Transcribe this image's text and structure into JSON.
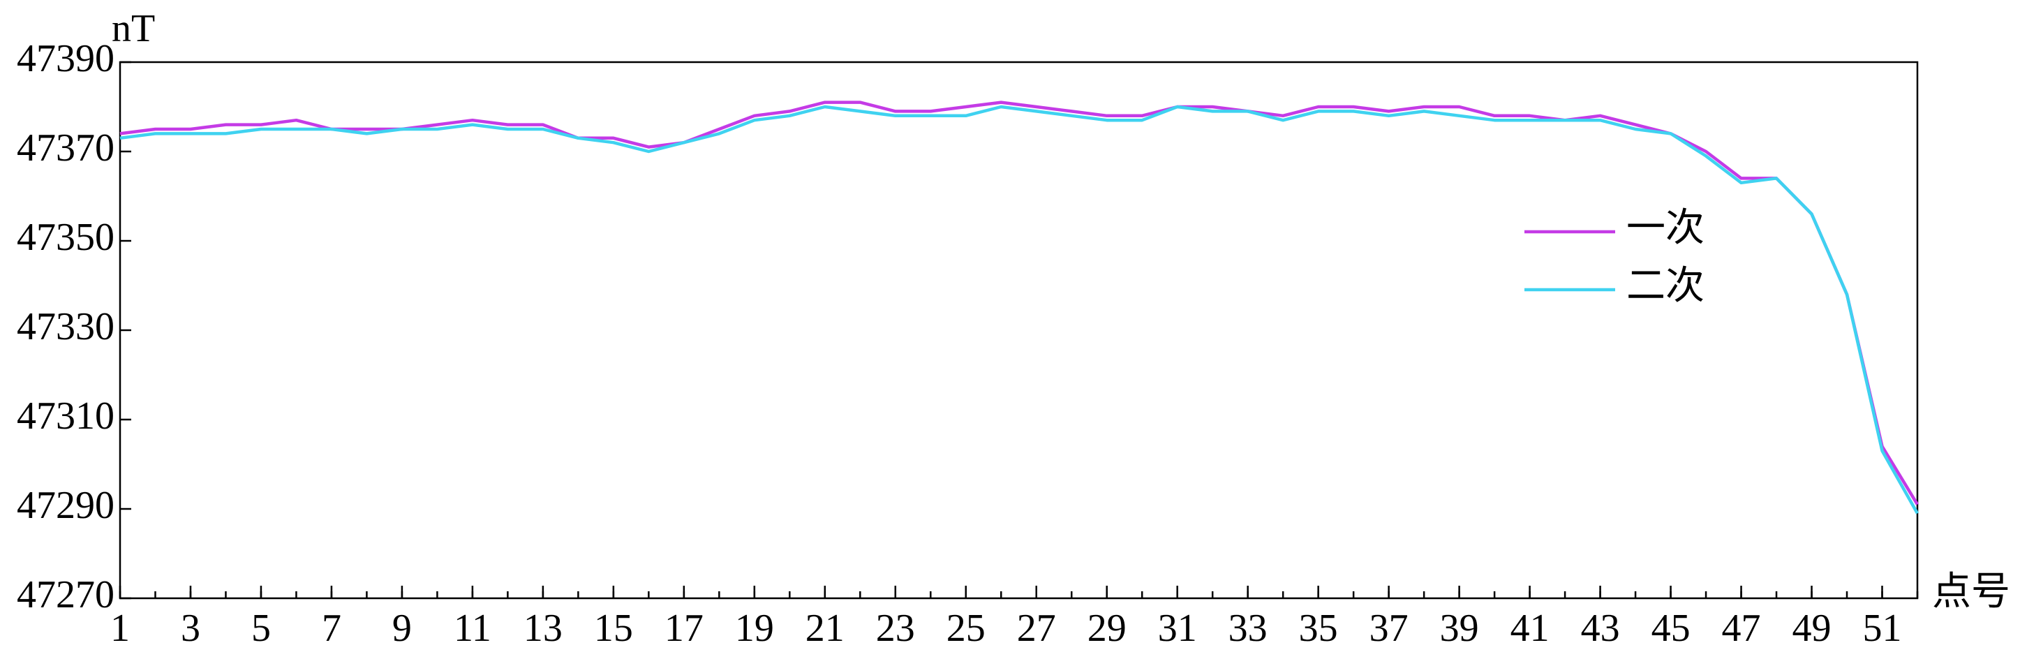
{
  "chart_data": {
    "type": "line",
    "y_label": "nT",
    "x_label": "点号",
    "x": [
      1,
      2,
      3,
      4,
      5,
      6,
      7,
      8,
      9,
      10,
      11,
      12,
      13,
      14,
      15,
      16,
      17,
      18,
      19,
      20,
      21,
      22,
      23,
      24,
      25,
      26,
      27,
      28,
      29,
      30,
      31,
      32,
      33,
      34,
      35,
      36,
      37,
      38,
      39,
      40,
      41,
      42,
      43,
      44,
      45,
      46,
      47,
      48,
      49,
      50,
      51,
      52
    ],
    "series": [
      {
        "name": "一次",
        "color": "#c43be6",
        "values": [
          47374,
          47375,
          47375,
          47376,
          47376,
          47377,
          47375,
          47375,
          47375,
          47376,
          47377,
          47376,
          47376,
          47373,
          47373,
          47371,
          47372,
          47375,
          47378,
          47379,
          47381,
          47381,
          47379,
          47379,
          47380,
          47381,
          47380,
          47379,
          47378,
          47378,
          47380,
          47380,
          47379,
          47378,
          47380,
          47380,
          47379,
          47380,
          47380,
          47378,
          47378,
          47377,
          47378,
          47376,
          47374,
          47370,
          47364,
          47364,
          47356,
          47338,
          47304,
          47291
        ]
      },
      {
        "name": "二次",
        "color": "#3fd2f0",
        "values": [
          47373,
          47374,
          47374,
          47374,
          47375,
          47375,
          47375,
          47374,
          47375,
          47375,
          47376,
          47375,
          47375,
          47373,
          47372,
          47370,
          47372,
          47374,
          47377,
          47378,
          47380,
          47379,
          47378,
          47378,
          47378,
          47380,
          47379,
          47378,
          47377,
          47377,
          47380,
          47379,
          47379,
          47377,
          47379,
          47379,
          47378,
          47379,
          47378,
          47377,
          47377,
          47377,
          47377,
          47375,
          47374,
          47369,
          47363,
          47364,
          47356,
          47338,
          47303,
          47289
        ]
      }
    ],
    "xlim": [
      1,
      52
    ],
    "xticks": [
      1,
      3,
      5,
      7,
      9,
      11,
      13,
      15,
      17,
      19,
      21,
      23,
      25,
      27,
      29,
      31,
      33,
      35,
      37,
      39,
      41,
      43,
      45,
      47,
      49,
      51
    ],
    "ylim": [
      47270,
      47390
    ],
    "yticks": [
      47270,
      47290,
      47310,
      47330,
      47350,
      47370,
      47390
    ],
    "legend": "center right",
    "grid": false
  }
}
